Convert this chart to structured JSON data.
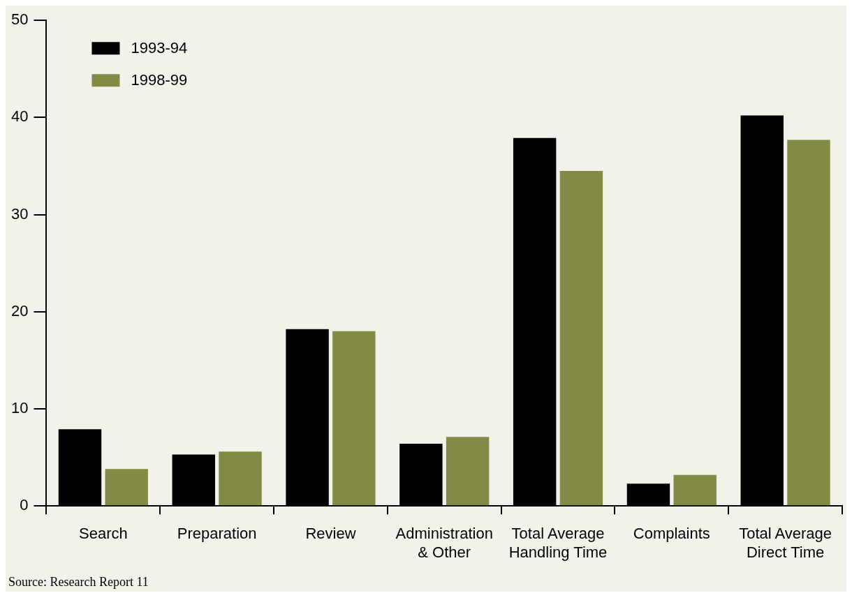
{
  "chart_data": {
    "type": "bar",
    "categories": [
      "Search",
      "Preparation",
      "Review",
      "Administration & Other",
      "Total Average Handling Time",
      "Complaints",
      "Total Average Direct Time"
    ],
    "series": [
      {
        "name": "1993-94",
        "color": "#000000",
        "values": [
          7.9,
          5.3,
          18.2,
          6.4,
          37.9,
          2.3,
          40.2
        ]
      },
      {
        "name": "1998-99",
        "color": "#828a45",
        "values": [
          3.8,
          5.6,
          18.0,
          7.1,
          34.5,
          3.2,
          37.7
        ]
      }
    ],
    "ylim": [
      0,
      50
    ],
    "yticks": [
      0,
      10,
      20,
      30,
      40,
      50
    ],
    "grid": false,
    "legend": "top left",
    "annotations": [
      "Source: Research Report 11"
    ]
  }
}
